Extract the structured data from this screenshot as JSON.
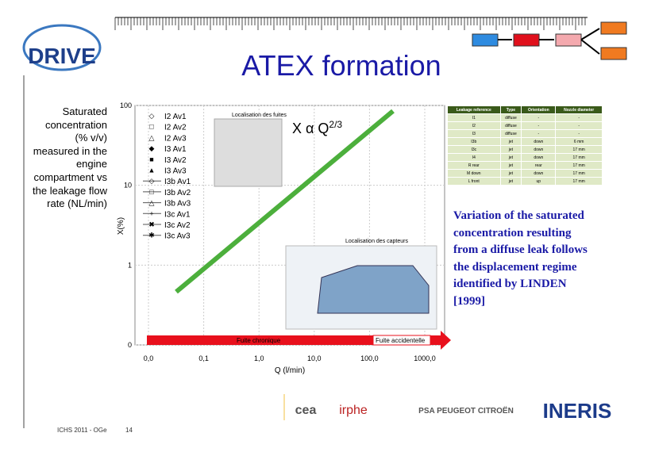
{
  "header": {
    "logo": "DRIVE",
    "title": "ATEX formation"
  },
  "caption": "Saturated concentration (% v/v) measured in the engine compartment vs the leakage flow rate (NL/min)",
  "figure": {
    "y_label": "X(%)",
    "x_label": "Q (l/min)",
    "y_ticks": [
      "100",
      "10",
      "1",
      "0"
    ],
    "x_ticks": [
      "0,0",
      "0,1",
      "1,0",
      "10,0",
      "100,0",
      "1000,0"
    ],
    "legend": [
      "I2 Av1",
      "I2 Av2",
      "I2 Av3",
      "I3 Av1",
      "I3 Av2",
      "I3 Av3",
      "I3b Av1",
      "I3b Av2",
      "I3b Av3",
      "I3c Av1",
      "I3c Av2",
      "I3c Av3"
    ],
    "formula": "X α Q",
    "formula_exponent": "2/3",
    "inset_top_label": "Localisation des fuites",
    "inset_bottom_label": "Localisation des capteurs",
    "bar_left_label": "Fuite chronique",
    "bar_right_label": "Fuite accidentelle"
  },
  "table": {
    "header": [
      "Leakage reference",
      "Type",
      "Orientation",
      "Nozzle diameter"
    ],
    "rows": [
      [
        "I1",
        "diffuse",
        "-",
        "-"
      ],
      [
        "I2",
        "diffuse",
        "-",
        "-"
      ],
      [
        "I3",
        "diffuse",
        "-",
        "-"
      ],
      [
        "I3b",
        "jet",
        "down",
        "6 mm"
      ],
      [
        "I3c",
        "jet",
        "down",
        "17 mm"
      ],
      [
        "I4",
        "jet",
        "down",
        "17 mm"
      ],
      [
        "R rear",
        "jet",
        "rear",
        "17 mm"
      ],
      [
        "M down",
        "jet",
        "down",
        "17 mm"
      ],
      [
        "L front",
        "jet",
        "up",
        "17 mm"
      ]
    ]
  },
  "note": "Variation of the saturated concentration resulting from a diffuse leak follows the displacement regime identified by LINDEN [1999]",
  "footer": {
    "conference": "ICHS 2011 - OGe",
    "page": "14"
  },
  "partners": [
    "cea",
    "irphe",
    "PSA PEUGEOT CITROËN",
    "INERIS"
  ]
}
